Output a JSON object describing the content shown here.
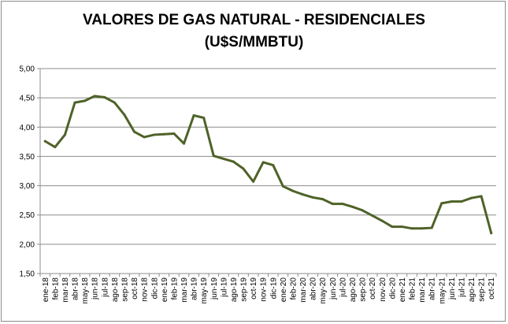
{
  "chart_data": {
    "type": "line",
    "title_line1": "VALORES DE GAS NATURAL - RESIDENCIALES",
    "title_line2": "(U$S/MMBTU)",
    "xlabel": "",
    "ylabel": "",
    "ylim": [
      1.5,
      5.0
    ],
    "y_ticks": [
      "1,50",
      "2,00",
      "2,50",
      "3,00",
      "3,50",
      "4,00",
      "4,50",
      "5,00"
    ],
    "grid": true,
    "line_color": "#4f6228",
    "categories": [
      "ene-18",
      "feb-18",
      "mar-18",
      "abr-18",
      "may-18",
      "jun-18",
      "jul-18",
      "ago-18",
      "sep-18",
      "oct-18",
      "nov-18",
      "dic-18",
      "ene-19",
      "feb-19",
      "mar-19",
      "abr-19",
      "may-19",
      "jun-19",
      "jul-19",
      "ago-19",
      "sep-19",
      "oct-19",
      "nov-19",
      "dic-19",
      "ene-20",
      "feb-20",
      "mar-20",
      "abr-20",
      "may-20",
      "jun-20",
      "jul-20",
      "ago-20",
      "sep-20",
      "oct-20",
      "nov-20",
      "dic-20",
      "ene-21",
      "feb-21",
      "mar-21",
      "abr-21",
      "may-21",
      "jun-21",
      "jul-21",
      "ago-21",
      "sep-21",
      "oct-21"
    ],
    "values": [
      3.76,
      3.66,
      3.87,
      4.42,
      4.45,
      4.53,
      4.51,
      4.42,
      4.21,
      3.92,
      3.83,
      3.87,
      3.88,
      3.89,
      3.72,
      4.2,
      4.16,
      3.51,
      3.46,
      3.41,
      3.29,
      3.07,
      3.4,
      3.35,
      2.99,
      2.91,
      2.85,
      2.8,
      2.77,
      2.69,
      2.69,
      2.64,
      2.58,
      2.49,
      2.4,
      2.3,
      2.3,
      2.27,
      2.27,
      2.28,
      2.7,
      2.73,
      2.73,
      2.79,
      2.82,
      2.19
    ]
  }
}
